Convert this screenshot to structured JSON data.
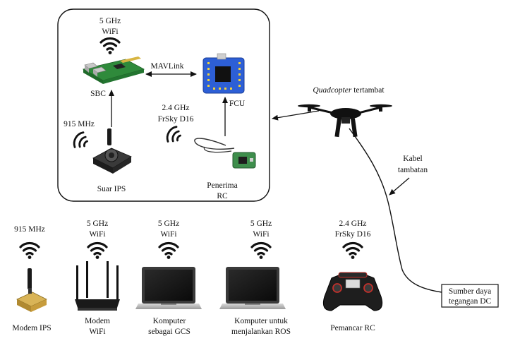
{
  "onboard": {
    "sbc": {
      "band": "5 GHz",
      "protocol": "WiFi",
      "label": "SBC"
    },
    "fcu": {
      "label": "FCU"
    },
    "mavlink": "MAVLink",
    "ips_beacon": {
      "band": "915 MHz",
      "label": "Suar IPS"
    },
    "rc_receiver": {
      "band": "2.4 GHz",
      "protocol": "FrSky D16",
      "label_line1": "Penerima",
      "label_line2": "RC"
    }
  },
  "drone": {
    "label_italic": "Quadcopter",
    "label_rest": " tertambat"
  },
  "tether": {
    "label_line1": "Kabel",
    "label_line2": "tambatan"
  },
  "power": {
    "label_line1": "Sumber daya",
    "label_line2": "tegangan DC"
  },
  "ground": [
    {
      "band": "915 MHz",
      "protocol": "",
      "label_line1": "Modem IPS",
      "label_line2": ""
    },
    {
      "band": "5 GHz",
      "protocol": "WiFi",
      "label_line1": "Modem",
      "label_line2": "WiFi"
    },
    {
      "band": "5 GHz",
      "protocol": "WiFi",
      "label_line1": "Komputer",
      "label_line2": "sebagai GCS"
    },
    {
      "band": "5 GHz",
      "protocol": "WiFi",
      "label_line1": "Komputer untuk",
      "label_line2": "menjalankan ROS"
    },
    {
      "band": "2.4 GHz",
      "protocol": "FrSky D16",
      "label_line1": "Pemancar RC",
      "label_line2": ""
    }
  ],
  "icons": {
    "wifi": "wifi-signal-icon",
    "sbc": "single-board-computer-icon",
    "fcu": "flight-controller-board-icon",
    "beacon": "ips-beacon-icon",
    "receiver": "rc-receiver-icon",
    "drone": "quadcopter-icon",
    "modem": "ips-modem-icon",
    "router": "wifi-router-icon",
    "laptop": "laptop-icon",
    "transmitter": "rc-transmitter-icon"
  }
}
